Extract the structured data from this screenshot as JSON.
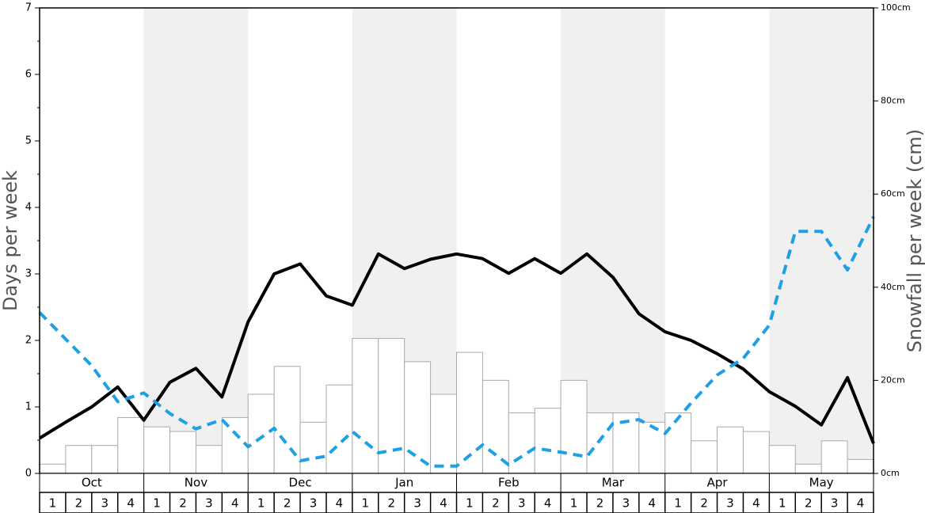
{
  "chart_data": {
    "type": "bar-line",
    "y_label": "Days per week",
    "y2_label": "Snowfall per week (cm)",
    "months": [
      "Oct",
      "Nov",
      "Dec",
      "Jan",
      "Feb",
      "Mar",
      "Apr",
      "May"
    ],
    "weeks": [
      "1",
      "2",
      "3",
      "4"
    ],
    "ylim": [
      0,
      7
    ],
    "yticks": [
      0,
      1,
      2,
      3,
      4,
      5,
      6,
      7
    ],
    "y2lim": [
      0,
      100
    ],
    "y2ticks": [
      {
        "value": 0,
        "label": "0cm"
      },
      {
        "value": 20,
        "label": "20cm"
      },
      {
        "value": 40,
        "label": "40cm"
      },
      {
        "value": 60,
        "label": "60cm"
      },
      {
        "value": 80,
        "label": "80cm"
      },
      {
        "value": 100,
        "label": "100cm"
      }
    ],
    "bars": {
      "axis": "y2",
      "color": "#ffffff",
      "values": [
        2,
        6,
        6,
        12,
        10,
        9,
        6,
        12,
        17,
        23,
        11,
        19,
        29,
        29,
        24,
        17,
        26,
        20,
        13,
        14,
        20,
        13,
        13,
        11,
        13,
        7,
        10,
        9,
        6,
        2,
        7,
        3
      ]
    },
    "series": [
      {
        "color": "#000000",
        "style": "solid",
        "values": [
          0.53,
          0.77,
          1.0,
          1.3,
          0.8,
          1.37,
          1.58,
          1.15,
          2.28,
          3.0,
          3.15,
          2.67,
          2.53,
          3.3,
          3.08,
          3.22,
          3.3,
          3.23,
          3.01,
          3.23,
          3.01,
          3.3,
          2.95,
          2.4,
          2.13,
          2.0,
          1.8,
          1.57,
          1.23,
          1.01,
          0.73,
          1.44,
          0.45
        ]
      },
      {
        "color": "#1ea0e6",
        "style": "dashed",
        "values": [
          2.42,
          2.02,
          1.62,
          1.08,
          1.21,
          0.9,
          0.67,
          0.81,
          0.4,
          0.68,
          0.19,
          0.26,
          0.63,
          0.31,
          0.38,
          0.11,
          0.11,
          0.43,
          0.13,
          0.38,
          0.32,
          0.25,
          0.75,
          0.81,
          0.6,
          1.06,
          1.48,
          1.73,
          2.23,
          3.64,
          3.64,
          3.06,
          3.86
        ]
      }
    ]
  }
}
